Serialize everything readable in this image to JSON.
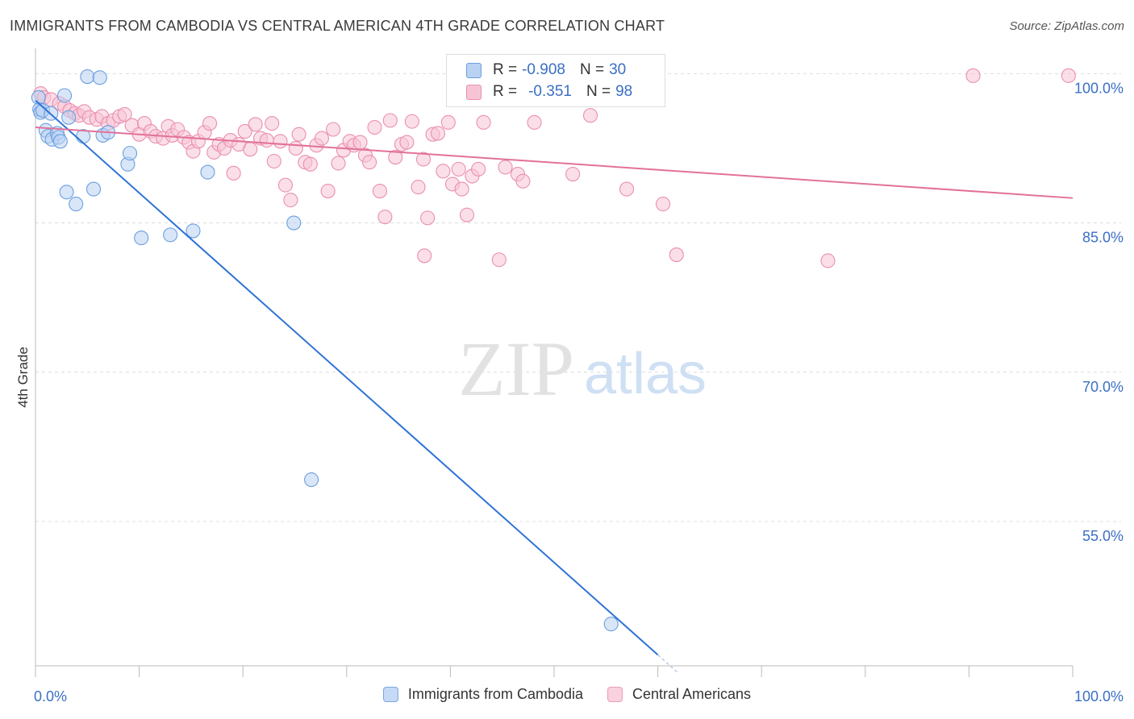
{
  "title": "IMMIGRANTS FROM CAMBODIA VS CENTRAL AMERICAN 4TH GRADE CORRELATION CHART",
  "source": "Source: ZipAtlas.com",
  "watermark": {
    "zip": "ZIP",
    "atlas": "atlas"
  },
  "legend": {
    "rows": [
      {
        "r_label": "R =",
        "r_value": "-0.908",
        "n_label": "N =",
        "n_value": "30",
        "color": "#a9c8f0",
        "border": "#6a9fe0"
      },
      {
        "r_label": "R =",
        "r_value": "-0.351",
        "n_label": "N =",
        "n_value": "98",
        "color": "#f7c0d2",
        "border": "#e88aa8"
      }
    ]
  },
  "bottom_legend": [
    {
      "label": "Immigrants from Cambodia",
      "color": "#c5daf6",
      "border": "#7aa7e4"
    },
    {
      "label": "Central Americans",
      "color": "#f9d1df",
      "border": "#ea9bb6"
    }
  ],
  "chart_data": {
    "type": "scatter",
    "title": "IMMIGRANTS FROM CAMBODIA VS CENTRAL AMERICAN 4TH GRADE CORRELATION CHART",
    "xlabel": "",
    "ylabel": "4th Grade",
    "xlim": [
      0,
      100
    ],
    "ylim": [
      40.5,
      101
    ],
    "x_tick_labels": [
      {
        "value": 0,
        "label": "0.0%"
      },
      {
        "value": 100,
        "label": "100.0%"
      }
    ],
    "y_tick_labels": [
      {
        "value": 100,
        "label": "100.0%"
      },
      {
        "value": 85,
        "label": "85.0%"
      },
      {
        "value": 70,
        "label": "70.0%"
      },
      {
        "value": 55,
        "label": "55.0%"
      }
    ],
    "grid": true,
    "legend_position": "top-center",
    "series": [
      {
        "name": "Immigrants from Cambodia",
        "color": "#6a9fe0",
        "fill": "#b9d2f3",
        "trend": {
          "x0": 0,
          "y0": 97.3,
          "x1": 60,
          "y1": 41.6,
          "dash_to_x": 62,
          "color": "#2f73d6"
        },
        "points": [
          [
            0.3,
            97.6
          ],
          [
            0.4,
            96.4
          ],
          [
            0.5,
            96.1
          ],
          [
            0.7,
            96.3
          ],
          [
            1.0,
            94.3
          ],
          [
            1.2,
            93.7
          ],
          [
            1.5,
            96.0
          ],
          [
            1.6,
            93.4
          ],
          [
            2.1,
            94.0
          ],
          [
            2.2,
            93.6
          ],
          [
            2.4,
            93.2
          ],
          [
            2.8,
            97.8
          ],
          [
            3.0,
            88.1
          ],
          [
            3.2,
            95.6
          ],
          [
            3.9,
            86.9
          ],
          [
            4.6,
            93.7
          ],
          [
            5.0,
            99.7
          ],
          [
            5.6,
            88.4
          ],
          [
            6.2,
            99.6
          ],
          [
            6.5,
            93.8
          ],
          [
            7.0,
            94.1
          ],
          [
            8.9,
            90.9
          ],
          [
            9.1,
            92.0
          ],
          [
            10.2,
            83.5
          ],
          [
            13.0,
            83.8
          ],
          [
            15.2,
            84.2
          ],
          [
            16.6,
            90.1
          ],
          [
            24.9,
            85.0
          ],
          [
            26.6,
            59.2
          ],
          [
            55.5,
            44.7
          ]
        ]
      },
      {
        "name": "Central Americans",
        "color": "#ea8fb0",
        "fill": "#f7c4d6",
        "trend": {
          "x0": 0,
          "y0": 94.6,
          "x1": 100,
          "y1": 87.5,
          "color": "#e2719a"
        },
        "points": [
          [
            0.5,
            98.0
          ],
          [
            0.8,
            97.6
          ],
          [
            1.5,
            97.4
          ],
          [
            2.3,
            97.0
          ],
          [
            2.8,
            96.7
          ],
          [
            3.3,
            96.3
          ],
          [
            3.8,
            96.0
          ],
          [
            4.2,
            95.8
          ],
          [
            4.7,
            96.2
          ],
          [
            5.2,
            95.6
          ],
          [
            5.9,
            95.4
          ],
          [
            6.4,
            95.7
          ],
          [
            7.0,
            95.0
          ],
          [
            7.5,
            95.3
          ],
          [
            8.1,
            95.7
          ],
          [
            8.6,
            95.9
          ],
          [
            9.3,
            94.8
          ],
          [
            10.0,
            93.9
          ],
          [
            10.5,
            95.0
          ],
          [
            11.1,
            94.2
          ],
          [
            11.6,
            93.7
          ],
          [
            12.3,
            93.5
          ],
          [
            12.8,
            94.7
          ],
          [
            13.2,
            93.8
          ],
          [
            13.7,
            94.4
          ],
          [
            14.3,
            93.6
          ],
          [
            14.8,
            93.1
          ],
          [
            15.2,
            92.2
          ],
          [
            15.7,
            93.2
          ],
          [
            16.3,
            94.1
          ],
          [
            16.8,
            95.0
          ],
          [
            17.2,
            92.1
          ],
          [
            17.7,
            92.9
          ],
          [
            18.2,
            92.5
          ],
          [
            18.8,
            93.3
          ],
          [
            19.1,
            90.0
          ],
          [
            19.6,
            92.9
          ],
          [
            20.2,
            94.2
          ],
          [
            20.7,
            92.4
          ],
          [
            21.2,
            94.9
          ],
          [
            21.7,
            93.5
          ],
          [
            22.3,
            93.3
          ],
          [
            22.8,
            95.0
          ],
          [
            23.0,
            91.2
          ],
          [
            23.6,
            93.2
          ],
          [
            24.1,
            88.8
          ],
          [
            24.6,
            87.3
          ],
          [
            25.1,
            92.5
          ],
          [
            25.4,
            93.9
          ],
          [
            26.0,
            91.1
          ],
          [
            26.5,
            90.9
          ],
          [
            27.1,
            92.8
          ],
          [
            27.6,
            93.5
          ],
          [
            28.2,
            88.2
          ],
          [
            28.7,
            94.4
          ],
          [
            29.2,
            91.0
          ],
          [
            29.7,
            92.3
          ],
          [
            30.3,
            93.2
          ],
          [
            30.7,
            92.8
          ],
          [
            31.3,
            93.1
          ],
          [
            31.8,
            91.8
          ],
          [
            32.2,
            91.1
          ],
          [
            32.7,
            94.6
          ],
          [
            33.2,
            88.2
          ],
          [
            33.7,
            85.6
          ],
          [
            34.2,
            95.3
          ],
          [
            34.7,
            91.6
          ],
          [
            35.3,
            92.9
          ],
          [
            35.8,
            93.1
          ],
          [
            36.3,
            95.2
          ],
          [
            36.9,
            88.6
          ],
          [
            37.4,
            91.4
          ],
          [
            37.8,
            85.5
          ],
          [
            38.3,
            93.9
          ],
          [
            38.8,
            94.0
          ],
          [
            39.3,
            90.2
          ],
          [
            39.8,
            95.1
          ],
          [
            40.2,
            88.9
          ],
          [
            40.8,
            90.4
          ],
          [
            41.1,
            88.4
          ],
          [
            41.6,
            85.8
          ],
          [
            42.1,
            89.7
          ],
          [
            42.7,
            90.4
          ],
          [
            43.2,
            95.1
          ],
          [
            45.3,
            90.6
          ],
          [
            46.5,
            89.9
          ],
          [
            47.0,
            89.2
          ],
          [
            48.1,
            95.1
          ],
          [
            51.8,
            89.9
          ],
          [
            57.0,
            88.4
          ],
          [
            60.5,
            86.9
          ],
          [
            61.8,
            81.8
          ],
          [
            76.4,
            81.2
          ],
          [
            90.4,
            99.8
          ],
          [
            99.6,
            99.8
          ],
          [
            44.7,
            81.3
          ],
          [
            37.5,
            81.7
          ],
          [
            53.5,
            95.8
          ]
        ]
      }
    ]
  }
}
